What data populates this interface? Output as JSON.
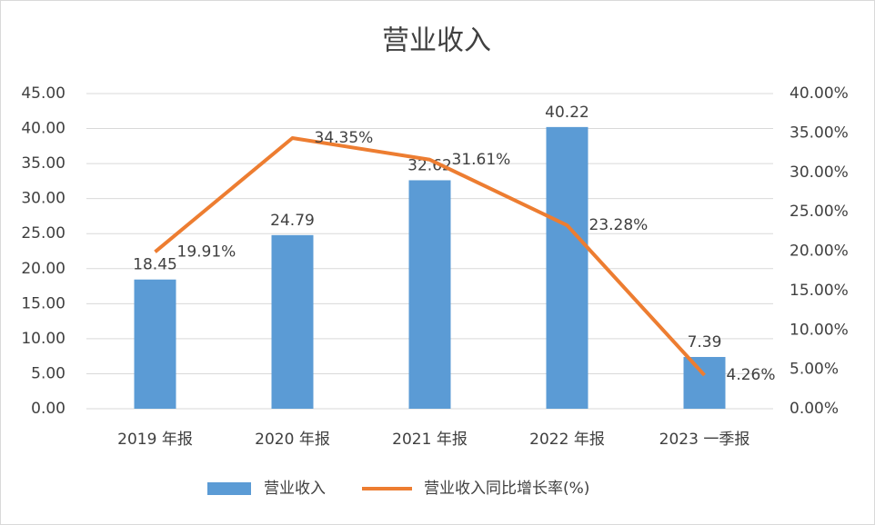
{
  "chart_data": {
    "type": "combo",
    "title": "营业收入",
    "categories": [
      "2019 年报",
      "2020 年报",
      "2021 年报",
      "2022 年报",
      "2023 一季报"
    ],
    "series": [
      {
        "name": "营业收入",
        "type": "bar",
        "color": "#5b9bd5",
        "values": [
          18.45,
          24.79,
          32.62,
          40.22,
          7.39
        ]
      },
      {
        "name": "营业收入同比增长率(%)",
        "type": "line",
        "axis": "y2",
        "color": "#ed7d31",
        "values": [
          19.91,
          34.35,
          31.61,
          23.28,
          4.26
        ],
        "value_labels": [
          "19.91%",
          "34.35%",
          "31.61%",
          "23.28%",
          "4.26%"
        ]
      }
    ],
    "ylim": [
      0,
      45
    ],
    "yticks": [
      {
        "value": 0,
        "label": "0.00"
      },
      {
        "value": 5,
        "label": "5.00"
      },
      {
        "value": 10,
        "label": "10.00"
      },
      {
        "value": 15,
        "label": "15.00"
      },
      {
        "value": 20,
        "label": "20.00"
      },
      {
        "value": 25,
        "label": "25.00"
      },
      {
        "value": 30,
        "label": "30.00"
      },
      {
        "value": 35,
        "label": "35.00"
      },
      {
        "value": 40,
        "label": "40.00"
      },
      {
        "value": 45,
        "label": "45.00"
      }
    ],
    "y2lim": [
      0,
      40
    ],
    "y2ticks": [
      {
        "value": 0,
        "label": "0.00%"
      },
      {
        "value": 5,
        "label": "5.00%"
      },
      {
        "value": 10,
        "label": "10.00%"
      },
      {
        "value": 15,
        "label": "15.00%"
      },
      {
        "value": 20,
        "label": "20.00%"
      },
      {
        "value": 25,
        "label": "25.00%"
      },
      {
        "value": 30,
        "label": "30.00%"
      },
      {
        "value": 35,
        "label": "35.00%"
      },
      {
        "value": 40,
        "label": "40.00%"
      }
    ],
    "grid": true,
    "legend": "bottom"
  }
}
